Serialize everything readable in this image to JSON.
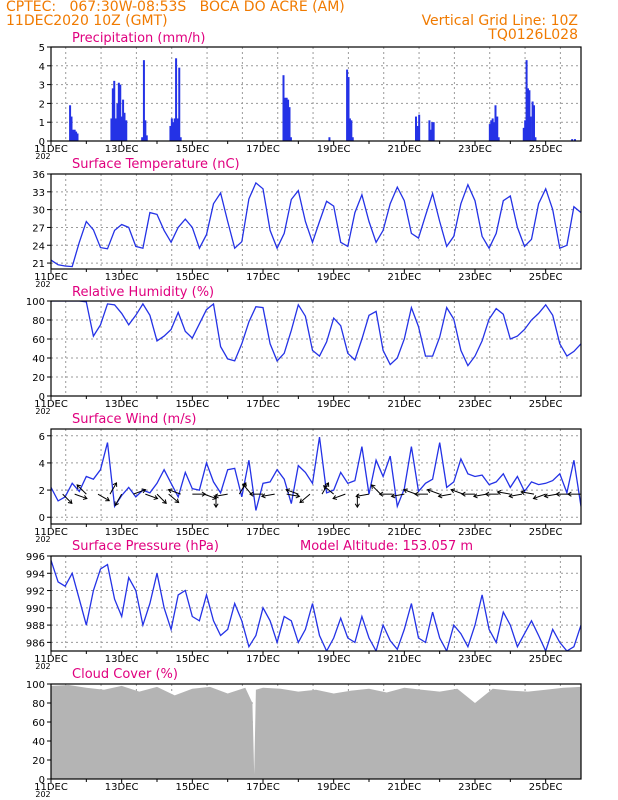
{
  "header": {
    "station": "CPTEC:   067:30W-08:53S   BOCA DO ACRE (AM)",
    "run": "11DEC2020 10Z (GMT)",
    "grid_note": "Vertical Grid Line: 10Z",
    "model": "TQ0126L028"
  },
  "colors": {
    "header": "#f07a00",
    "title": "#e0007f",
    "line": "#2432e6",
    "cloud": "#b4b4b4",
    "grid": "#9a9a9a"
  },
  "x_axis": {
    "day_start": 11,
    "day_end": 26,
    "labels": [
      {
        "day": 11,
        "text": "11DEC"
      },
      {
        "day": 13,
        "text": "13DEC"
      },
      {
        "day": 15,
        "text": "15DEC"
      },
      {
        "day": 17,
        "text": "17DEC"
      },
      {
        "day": 19,
        "text": "19DEC"
      },
      {
        "day": 21,
        "text": "21DEC"
      },
      {
        "day": 23,
        "text": "23DEC"
      },
      {
        "day": 25,
        "text": "25DEC"
      }
    ],
    "year_fragment": "202"
  },
  "chart_data": [
    {
      "id": "precip",
      "type": "bar",
      "title": "Precipitation (mm/h)",
      "ylim": [
        0,
        5
      ],
      "yticks": [
        0,
        1,
        2,
        3,
        4,
        5
      ],
      "x_unit": "day of December 2020 (fractional, GMT)",
      "x": [
        11.54,
        11.58,
        11.63,
        11.67,
        11.71,
        11.75,
        12.71,
        12.75,
        12.79,
        12.83,
        12.88,
        12.92,
        12.96,
        13.0,
        13.04,
        13.08,
        13.13,
        13.58,
        13.63,
        13.67,
        13.71,
        14.38,
        14.42,
        14.46,
        14.5,
        14.54,
        14.58,
        14.63,
        14.67,
        17.58,
        17.63,
        17.67,
        17.71,
        17.75,
        17.79,
        18.88,
        19.38,
        19.42,
        19.46,
        19.5,
        19.54,
        21.33,
        21.38,
        21.42,
        21.71,
        21.75,
        21.79,
        21.83,
        23.42,
        23.46,
        23.5,
        23.54,
        23.58,
        23.63,
        23.67,
        24.38,
        24.42,
        24.46,
        24.5,
        24.54,
        24.58,
        24.63,
        24.67,
        24.71,
        25.75,
        25.83
      ],
      "values": [
        1.9,
        1.3,
        0.6,
        0.6,
        0.5,
        0.4,
        1.2,
        2.8,
        3.2,
        1.2,
        2.0,
        3.1,
        3.0,
        1.3,
        2.2,
        1.5,
        1.1,
        0.2,
        4.3,
        1.1,
        0.3,
        0.8,
        1.2,
        1.0,
        1.2,
        4.4,
        1.2,
        3.9,
        0.2,
        3.5,
        2.3,
        2.3,
        2.2,
        1.8,
        0.2,
        0.2,
        3.8,
        3.4,
        1.2,
        1.1,
        0.2,
        1.3,
        0.8,
        1.4,
        1.1,
        0.6,
        1.0,
        1.0,
        0.9,
        1.1,
        1.2,
        1.0,
        1.9,
        1.3,
        0.2,
        0.7,
        1.1,
        4.3,
        2.8,
        2.7,
        1.3,
        2.1,
        1.9,
        0.2,
        0.1,
        0.1
      ]
    },
    {
      "id": "temp",
      "type": "line",
      "title": "Surface Temperature (nC)",
      "ylim": [
        20,
        36
      ],
      "yticks": [
        21,
        24,
        27,
        30,
        33,
        36
      ],
      "ytick_labels": [
        "21",
        "24",
        "27",
        "30",
        "33",
        "36"
      ],
      "x": [
        11.0,
        11.2,
        11.4,
        11.6,
        11.8,
        12.0,
        12.2,
        12.4,
        12.6,
        12.8,
        13.0,
        13.2,
        13.4,
        13.6,
        13.8,
        14.0,
        14.2,
        14.4,
        14.6,
        14.8,
        15.0,
        15.2,
        15.4,
        15.6,
        15.8,
        16.0,
        16.2,
        16.4,
        16.6,
        16.8,
        17.0,
        17.2,
        17.4,
        17.6,
        17.8,
        18.0,
        18.2,
        18.4,
        18.6,
        18.8,
        19.0,
        19.2,
        19.4,
        19.6,
        19.8,
        20.0,
        20.2,
        20.4,
        20.6,
        20.8,
        21.0,
        21.2,
        21.4,
        21.6,
        21.8,
        22.0,
        22.2,
        22.4,
        22.6,
        22.8,
        23.0,
        23.2,
        23.4,
        23.6,
        23.8,
        24.0,
        24.2,
        24.4,
        24.6,
        24.8,
        25.0,
        25.2,
        25.4,
        25.6,
        25.8,
        26.0
      ],
      "values": [
        21.5,
        20.7,
        20.5,
        20.4,
        24.5,
        28.0,
        26.6,
        23.6,
        23.4,
        26.5,
        27.5,
        27.0,
        23.8,
        23.5,
        29.5,
        29.2,
        26.5,
        24.5,
        27.0,
        28.4,
        27.0,
        23.5,
        25.8,
        31.0,
        32.8,
        28.0,
        23.5,
        24.6,
        31.8,
        34.5,
        33.5,
        26.5,
        23.5,
        26.0,
        31.7,
        33.2,
        28.0,
        24.5,
        28.0,
        31.4,
        30.6,
        24.5,
        23.8,
        29.5,
        32.5,
        28.0,
        24.5,
        26.5,
        31.0,
        33.8,
        31.5,
        26.0,
        25.2,
        29.0,
        32.7,
        28.0,
        23.8,
        25.5,
        31.0,
        34.2,
        31.5,
        25.5,
        23.5,
        26.0,
        31.5,
        32.3,
        27.0,
        23.8,
        25.0,
        31.0,
        33.5,
        30.0,
        23.5,
        24.0,
        30.5,
        29.5
      ]
    },
    {
      "id": "rh",
      "type": "line",
      "title": "Relative Humidity (%)",
      "ylim": [
        0,
        100
      ],
      "yticks": [
        0,
        20,
        40,
        60,
        80,
        100
      ],
      "x": [
        11.0,
        11.2,
        11.4,
        11.6,
        11.8,
        12.0,
        12.2,
        12.4,
        12.6,
        12.8,
        13.0,
        13.2,
        13.4,
        13.6,
        13.8,
        14.0,
        14.2,
        14.4,
        14.6,
        14.8,
        15.0,
        15.2,
        15.4,
        15.6,
        15.8,
        16.0,
        16.2,
        16.4,
        16.6,
        16.8,
        17.0,
        17.2,
        17.4,
        17.6,
        17.8,
        18.0,
        18.2,
        18.4,
        18.6,
        18.8,
        19.0,
        19.2,
        19.4,
        19.6,
        19.8,
        20.0,
        20.2,
        20.4,
        20.6,
        20.8,
        21.0,
        21.2,
        21.4,
        21.6,
        21.8,
        22.0,
        22.2,
        22.4,
        22.6,
        22.8,
        23.0,
        23.2,
        23.4,
        23.6,
        23.8,
        24.0,
        24.2,
        24.4,
        24.6,
        24.8,
        25.0,
        25.2,
        25.4,
        25.6,
        25.8,
        26.0
      ],
      "values": [
        100,
        100,
        100,
        100,
        100,
        99,
        63,
        75,
        97,
        96,
        87,
        75,
        85,
        97,
        85,
        58,
        63,
        70,
        88,
        68,
        61,
        76,
        91,
        97,
        52,
        39,
        37,
        55,
        78,
        94,
        93,
        55,
        37,
        45,
        69,
        96,
        84,
        48,
        42,
        57,
        82,
        74,
        45,
        38,
        60,
        85,
        89,
        48,
        33,
        40,
        60,
        93,
        73,
        42,
        42,
        62,
        93,
        81,
        48,
        32,
        42,
        58,
        81,
        92,
        86,
        60,
        63,
        70,
        80,
        87,
        96,
        85,
        55,
        42,
        47,
        55
      ]
    },
    {
      "id": "wind",
      "type": "line",
      "title": "Surface Wind (m/s)",
      "ylim": [
        -0.5,
        6.5
      ],
      "yticks": [
        0,
        2,
        4,
        6
      ],
      "x": [
        11.0,
        11.2,
        11.4,
        11.6,
        11.8,
        12.0,
        12.2,
        12.4,
        12.6,
        12.8,
        13.0,
        13.2,
        13.4,
        13.6,
        13.8,
        14.0,
        14.2,
        14.4,
        14.6,
        14.8,
        15.0,
        15.2,
        15.4,
        15.6,
        15.8,
        16.0,
        16.2,
        16.4,
        16.6,
        16.8,
        17.0,
        17.2,
        17.4,
        17.6,
        17.8,
        18.0,
        18.2,
        18.4,
        18.6,
        18.8,
        19.0,
        19.2,
        19.4,
        19.6,
        19.8,
        20.0,
        20.2,
        20.4,
        20.6,
        20.8,
        21.0,
        21.2,
        21.4,
        21.6,
        21.8,
        22.0,
        22.2,
        22.4,
        22.6,
        22.8,
        23.0,
        23.2,
        23.4,
        23.6,
        23.8,
        24.0,
        24.2,
        24.4,
        24.6,
        24.8,
        25.0,
        25.2,
        25.4,
        25.6,
        25.8,
        26.0
      ],
      "values": [
        2.2,
        1.2,
        1.5,
        2.5,
        1.9,
        3.0,
        2.8,
        3.5,
        5.5,
        0.8,
        1.6,
        2.2,
        1.5,
        2.0,
        1.8,
        2.5,
        3.5,
        2.5,
        1.5,
        3.3,
        2.1,
        2.0,
        4.0,
        2.6,
        1.8,
        3.5,
        3.6,
        1.5,
        4.2,
        0.5,
        2.5,
        2.6,
        3.5,
        2.8,
        1.0,
        3.8,
        3.3,
        2.5,
        5.9,
        1.8,
        2.0,
        3.3,
        2.5,
        2.7,
        5.2,
        1.7,
        4.2,
        3.0,
        4.5,
        0.8,
        2.1,
        5.2,
        1.9,
        2.5,
        2.8,
        5.5,
        2.2,
        2.6,
        4.3,
        3.2,
        3.0,
        3.1,
        2.4,
        2.6,
        3.2,
        2.2,
        3.0,
        1.9,
        2.6,
        2.4,
        2.5,
        2.7,
        3.2,
        1.8,
        4.2,
        0.8
      ],
      "vectors_x": [
        11.33,
        11.67,
        12.0,
        12.33,
        12.67,
        13.0,
        13.33,
        13.67,
        14.0,
        14.33,
        14.67,
        15.0,
        15.33,
        15.67,
        16.0,
        16.33,
        16.67,
        17.0,
        17.33,
        17.67,
        18.0,
        18.33,
        18.67,
        19.0,
        19.33,
        19.67,
        20.0,
        20.33,
        20.67,
        21.0,
        21.33,
        21.67,
        22.0,
        22.33,
        22.67,
        23.0,
        23.33,
        23.67,
        24.0,
        24.33,
        24.67,
        25.0,
        25.33,
        25.67,
        26.0
      ],
      "vectors_deg": [
        45,
        20,
        225,
        30,
        300,
        120,
        340,
        20,
        45,
        40,
        200,
        0,
        20,
        90,
        170,
        300,
        230,
        180,
        170,
        10,
        200,
        140,
        300,
        220,
        160,
        90,
        170,
        225,
        180,
        170,
        200,
        180,
        200,
        170,
        200,
        180,
        170,
        180,
        190,
        170,
        190,
        160,
        170,
        180,
        180
      ]
    },
    {
      "id": "pressure",
      "type": "line",
      "title": "Surface Pressure (hPa)",
      "annotation": "Model Altitude: 153.057 m",
      "ylim": [
        985,
        996
      ],
      "yticks": [
        986,
        988,
        990,
        992,
        994,
        996
      ],
      "x": [
        11.0,
        11.2,
        11.4,
        11.6,
        11.8,
        12.0,
        12.2,
        12.4,
        12.6,
        12.8,
        13.0,
        13.2,
        13.4,
        13.6,
        13.8,
        14.0,
        14.2,
        14.4,
        14.6,
        14.8,
        15.0,
        15.2,
        15.4,
        15.6,
        15.8,
        16.0,
        16.2,
        16.4,
        16.6,
        16.8,
        17.0,
        17.2,
        17.4,
        17.6,
        17.8,
        18.0,
        18.2,
        18.4,
        18.6,
        18.8,
        19.0,
        19.2,
        19.4,
        19.6,
        19.8,
        20.0,
        20.2,
        20.4,
        20.6,
        20.8,
        21.0,
        21.2,
        21.4,
        21.6,
        21.8,
        22.0,
        22.2,
        22.4,
        22.6,
        22.8,
        23.0,
        23.2,
        23.4,
        23.6,
        23.8,
        24.0,
        24.2,
        24.4,
        24.6,
        24.8,
        25.0,
        25.2,
        25.4,
        25.6,
        25.8,
        26.0
      ],
      "values": [
        995.5,
        993.0,
        992.5,
        994.0,
        991.0,
        988.0,
        992.0,
        994.5,
        995.0,
        991.0,
        989.0,
        993.5,
        992.0,
        988.0,
        990.5,
        994.0,
        990.0,
        987.5,
        991.5,
        992.0,
        989.0,
        988.5,
        991.5,
        988.5,
        986.8,
        987.5,
        990.5,
        988.5,
        985.5,
        986.8,
        990.0,
        988.5,
        986.0,
        989.0,
        988.5,
        986.0,
        987.5,
        990.5,
        986.8,
        985.0,
        986.5,
        988.8,
        986.5,
        986.0,
        989.0,
        986.5,
        985.0,
        988.0,
        986.2,
        985.2,
        987.5,
        990.5,
        986.5,
        986.0,
        989.5,
        986.5,
        985.0,
        988.0,
        987.0,
        985.5,
        988.0,
        991.5,
        987.5,
        986.0,
        989.5,
        988.0,
        985.5,
        987.0,
        988.5,
        986.8,
        985.0,
        987.5,
        986.0,
        985.0,
        985.5,
        988.0
      ]
    },
    {
      "id": "cloud",
      "type": "area",
      "title": "Cloud Cover (%)",
      "ylim": [
        0,
        100
      ],
      "yticks": [
        0,
        20,
        40,
        60,
        80,
        100
      ],
      "x": [
        11.0,
        11.5,
        12.0,
        12.5,
        13.0,
        13.5,
        14.0,
        14.5,
        15.0,
        15.5,
        16.0,
        16.5,
        16.7,
        16.75,
        16.8,
        17.0,
        17.5,
        18.0,
        18.5,
        19.0,
        19.5,
        20.0,
        20.5,
        21.0,
        21.5,
        22.0,
        22.5,
        23.0,
        23.5,
        24.0,
        24.5,
        25.0,
        25.5,
        26.0
      ],
      "values": [
        98,
        99,
        96,
        94,
        98,
        92,
        97,
        88,
        95,
        97,
        90,
        96,
        80,
        5,
        94,
        96,
        95,
        92,
        94,
        90,
        93,
        95,
        91,
        96,
        94,
        92,
        95,
        80,
        95,
        93,
        92,
        94,
        96,
        97
      ]
    }
  ]
}
